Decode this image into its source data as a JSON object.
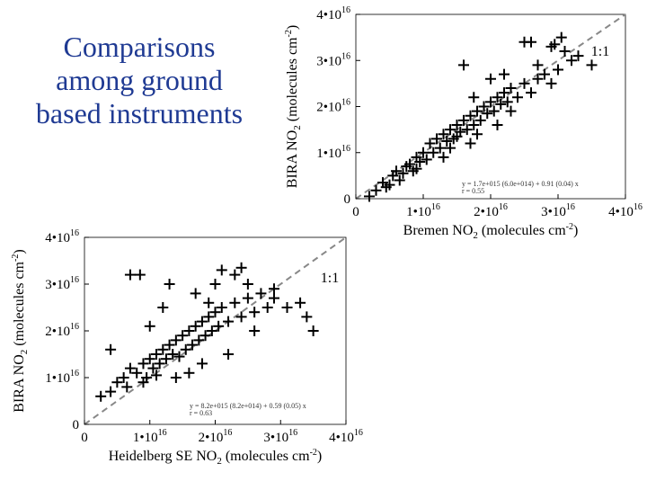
{
  "slide": {
    "title_lines": [
      "Comparisons",
      "among ground",
      "based instruments"
    ]
  },
  "chart_data": [
    {
      "type": "scatter",
      "xlabel": "Bremen NO2 (molecules cm-2)",
      "ylabel": "BIRA NO2 (molecules cm-2)",
      "xlim": [
        0,
        4e+16
      ],
      "ylim": [
        0,
        4e+16
      ],
      "x_ticks": [
        "0",
        "1•10^16",
        "2•10^16",
        "3•10^16",
        "4•10^16"
      ],
      "y_ticks": [
        "0",
        "1•10^16",
        "2•10^16",
        "3•10^16",
        "4•10^16"
      ],
      "one_to_one_label": "1:1",
      "fit_text": [
        "y = 1.7e+015 (6.0e+014) + 0.91 (0.04) x",
        "r = 0.55"
      ],
      "marker": "+",
      "line_color": "#888888",
      "series": [
        {
          "points": [
            [
              2000000000000000.0,
              500000000000000.0
            ],
            [
              3000000000000000.0,
              1800000000000000.0
            ],
            [
              4000000000000000.0,
              3500000000000000.0
            ],
            [
              4500000000000000.0,
              2500000000000000.0
            ],
            [
              5500000000000000.0,
              5000000000000000.0
            ],
            [
              6000000000000000.0,
              6000000000000000.0
            ],
            [
              6500000000000000.0,
              4000000000000000.0
            ],
            [
              7000000000000000.0,
              5500000000000000.0
            ],
            [
              7500000000000000.0,
              7000000000000000.0
            ],
            [
              8000000000000000.0,
              7500000000000000.0
            ],
            [
              8500000000000000.0,
              6000000000000000.0
            ],
            [
              9000000000000000.0,
              9000000000000000.0
            ],
            [
              9500000000000000.0,
              8000000000000000.0
            ],
            [
              1e+16,
              1e+16
            ],
            [
              1.05e+16,
              8500000000000000.0
            ],
            [
              1.1e+16,
              1.2e+16
            ],
            [
              1.15e+16,
              1e+16
            ],
            [
              1.2e+16,
              1.3e+16
            ],
            [
              1.25e+16,
              1.1e+16
            ],
            [
              1.3e+16,
              1.4e+16
            ],
            [
              1.35e+16,
              1.25e+16
            ],
            [
              1.4e+16,
              1.5e+16
            ],
            [
              1.45e+16,
              1.3e+16
            ],
            [
              1.5e+16,
              1.6e+16
            ],
            [
              1.55e+16,
              1.45e+16
            ],
            [
              1.6e+16,
              1.7e+16
            ],
            [
              1.65e+16,
              1.5e+16
            ],
            [
              1.7e+16,
              1.8e+16
            ],
            [
              1.75e+16,
              1.6e+16
            ],
            [
              1.8e+16,
              1.9e+16
            ],
            [
              1.85e+16,
              1.7e+16
            ],
            [
              1.9e+16,
              2e+16
            ],
            [
              1.95e+16,
              1.85e+16
            ],
            [
              2e+16,
              2.1e+16
            ],
            [
              2.05e+16,
              1.9e+16
            ],
            [
              2.1e+16,
              2.2e+16
            ],
            [
              2.15e+16,
              2.05e+16
            ],
            [
              2.2e+16,
              2.3e+16
            ],
            [
              2.25e+16,
              2.1e+16
            ],
            [
              2.3e+16,
              2.4e+16
            ],
            [
              2.4e+16,
              2.2e+16
            ],
            [
              2.5e+16,
              2.5e+16
            ],
            [
              2.6e+16,
              2.3e+16
            ],
            [
              2.7e+16,
              2.6e+16
            ],
            [
              2.8e+16,
              2.7e+16
            ],
            [
              2.9e+16,
              2.5e+16
            ],
            [
              3e+16,
              2.8e+16
            ],
            [
              3.1e+16,
              3.2e+16
            ],
            [
              3.2e+16,
              3e+16
            ],
            [
              3.3e+16,
              3.1e+16
            ],
            [
              3.5e+16,
              2.9e+16
            ],
            [
              1.6e+16,
              2.9e+16
            ],
            [
              1.75e+16,
              2.2e+16
            ],
            [
              2e+16,
              2.6e+16
            ],
            [
              2.2e+16,
              2.7e+16
            ],
            [
              2.3e+16,
              1.9e+16
            ],
            [
              2.5e+16,
              3.4e+16
            ],
            [
              2.6e+16,
              3.4e+16
            ],
            [
              2.7e+16,
              2.9e+16
            ],
            [
              2.9e+16,
              3.3e+16
            ],
            [
              2.95e+16,
              3.35e+16
            ],
            [
              3.05e+16,
              3.5e+16
            ],
            [
              1.4e+16,
              1.1e+16
            ],
            [
              1.3e+16,
              9000000000000000.0
            ],
            [
              1.5e+16,
              1.35e+16
            ],
            [
              1.8e+16,
              1.4e+16
            ],
            [
              2.1e+16,
              1.6e+16
            ],
            [
              5000000000000000.0,
              3000000000000000.0
            ],
            [
              9000000000000000.0,
              6500000000000000.0
            ],
            [
              1.7e+16,
              1.2e+16
            ]
          ]
        }
      ]
    },
    {
      "type": "scatter",
      "xlabel": "Heidelberg SE NO2 (molecules cm-2)",
      "ylabel": "BIRA NO2 (molecules cm-2)",
      "xlim": [
        0,
        4e+16
      ],
      "ylim": [
        0,
        4e+16
      ],
      "x_ticks": [
        "0",
        "1•10^16",
        "2•10^16",
        "3•10^16",
        "4•10^16"
      ],
      "y_ticks": [
        "0",
        "1•10^16",
        "2•10^16",
        "3•10^16",
        "4•10^16"
      ],
      "one_to_one_label": "1:1",
      "fit_text": [
        "y = 8.2e+015 (8.2e+014) + 0.59 (0.05) x",
        "r = 0.63"
      ],
      "marker": "+",
      "line_color": "#888888",
      "series": [
        {
          "points": [
            [
              2500000000000000.0,
              6000000000000000.0
            ],
            [
              4000000000000000.0,
              7000000000000000.0
            ],
            [
              5000000000000000.0,
              9000000000000000.0
            ],
            [
              6000000000000000.0,
              1e+16
            ],
            [
              6500000000000000.0,
              8000000000000000.0
            ],
            [
              7000000000000000.0,
              1.2e+16
            ],
            [
              8000000000000000.0,
              1.1e+16
            ],
            [
              9000000000000000.0,
              1.3e+16
            ],
            [
              9500000000000000.0,
              1e+16
            ],
            [
              1e+16,
              1.4e+16
            ],
            [
              1.05e+16,
              1.2e+16
            ],
            [
              1.1e+16,
              1.5e+16
            ],
            [
              1.15e+16,
              1.3e+16
            ],
            [
              1.2e+16,
              1.6e+16
            ],
            [
              1.25e+16,
              1.4e+16
            ],
            [
              1.3e+16,
              1.7e+16
            ],
            [
              1.35e+16,
              1.5e+16
            ],
            [
              1.4e+16,
              1.8e+16
            ],
            [
              1.45e+16,
              1.45e+16
            ],
            [
              1.5e+16,
              1.9e+16
            ],
            [
              1.55e+16,
              1.6e+16
            ],
            [
              1.6e+16,
              2e+16
            ],
            [
              1.65e+16,
              1.7e+16
            ],
            [
              1.7e+16,
              2.1e+16
            ],
            [
              1.75e+16,
              1.8e+16
            ],
            [
              1.8e+16,
              2.2e+16
            ],
            [
              1.85e+16,
              1.9e+16
            ],
            [
              1.9e+16,
              2.3e+16
            ],
            [
              1.95e+16,
              2e+16
            ],
            [
              2e+16,
              2.4e+16
            ],
            [
              2.05e+16,
              2.1e+16
            ],
            [
              2.1e+16,
              2.5e+16
            ],
            [
              2.2e+16,
              2.2e+16
            ],
            [
              2.3e+16,
              2.6e+16
            ],
            [
              2.4e+16,
              2.3e+16
            ],
            [
              2.5e+16,
              2.7e+16
            ],
            [
              2.6e+16,
              2.4e+16
            ],
            [
              2.7e+16,
              2.8e+16
            ],
            [
              2.8e+16,
              2.5e+16
            ],
            [
              2.9e+16,
              2.7e+16
            ],
            [
              3.1e+16,
              2.5e+16
            ],
            [
              3.4e+16,
              2.3e+16
            ],
            [
              7000000000000000.0,
              3.2e+16
            ],
            [
              8500000000000000.0,
              3.2e+16
            ],
            [
              1.2e+16,
              2.5e+16
            ],
            [
              1.3e+16,
              3e+16
            ],
            [
              2e+16,
              3e+16
            ],
            [
              2.1e+16,
              3.3e+16
            ],
            [
              2.3e+16,
              3.2e+16
            ],
            [
              2.4e+16,
              3.35e+16
            ],
            [
              2.5e+16,
              3e+16
            ],
            [
              2.9e+16,
              2.9e+16
            ],
            [
              1e+16,
              2.1e+16
            ],
            [
              4000000000000000.0,
              1.6e+16
            ],
            [
              1.6e+16,
              1.1e+16
            ],
            [
              1.8e+16,
              1.3e+16
            ],
            [
              2.2e+16,
              1.5e+16
            ],
            [
              1.4e+16,
              1e+16
            ],
            [
              1.7e+16,
              2.8e+16
            ],
            [
              3.3e+16,
              2.6e+16
            ],
            [
              3.5e+16,
              2e+16
            ],
            [
              1.9e+16,
              2.6e+16
            ],
            [
              9000000000000000.0,
              9000000000000000.0
            ],
            [
              1.1e+16,
              1.05e+16
            ],
            [
              2.6e+16,
              2e+16
            ]
          ]
        }
      ]
    }
  ]
}
